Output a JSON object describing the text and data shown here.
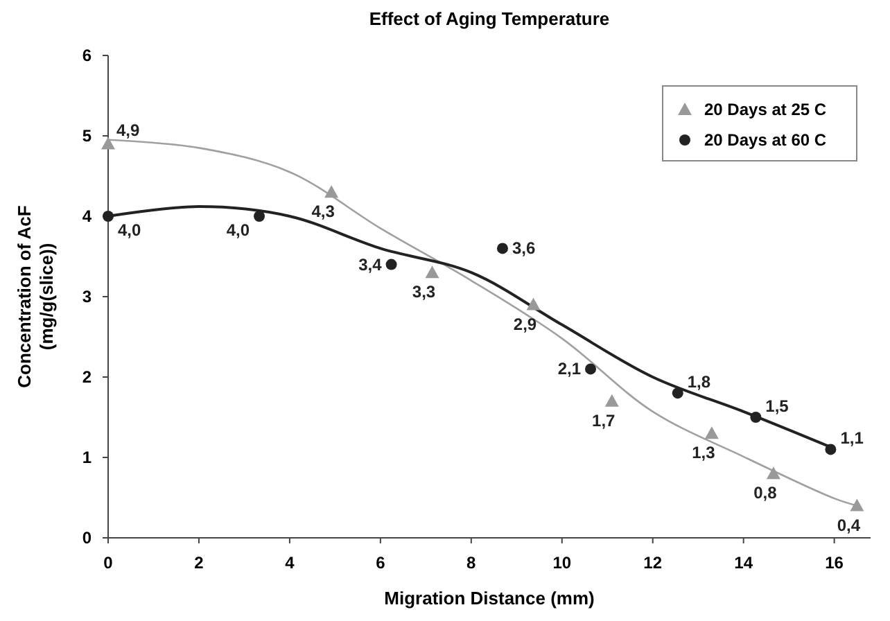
{
  "chart_data": {
    "type": "scatter",
    "title": "Effect of Aging Temperature",
    "xlabel": "Migration Distance (mm)",
    "ylabel": "Concentration of AcF (mg/g(slice))",
    "xlim": [
      0,
      16.8
    ],
    "xticks": [
      0,
      2,
      4,
      6,
      8,
      10,
      12,
      14,
      16
    ],
    "ylim": [
      0,
      6
    ],
    "yticks": [
      0,
      1,
      2,
      3,
      4,
      5,
      6
    ],
    "grid": false,
    "legend": "top right",
    "series": [
      {
        "name": "20 Days at 25 C",
        "marker": "triangle",
        "color": "#999999",
        "x": [
          0,
          4.92,
          7.14,
          9.37,
          11.1,
          13.3,
          14.66,
          16.5
        ],
        "values": [
          4.9,
          4.3,
          3.3,
          2.9,
          1.7,
          1.3,
          0.8,
          0.4
        ],
        "value_labels": [
          "4,9",
          "4,3",
          "3,3",
          "2,9",
          "1,7",
          "1,3",
          "0,8",
          "0,4"
        ]
      },
      {
        "name": "20 Days at 60 C",
        "marker": "circle",
        "color": "#222222",
        "x": [
          0,
          3.33,
          6.24,
          8.69,
          10.63,
          12.55,
          14.27,
          15.92
        ],
        "values": [
          4.0,
          4.0,
          3.4,
          3.6,
          2.1,
          1.8,
          1.5,
          1.1
        ],
        "value_labels": [
          "4,0",
          "4,0",
          "3,4",
          "3,6",
          "2,1",
          "1,8",
          "1,5",
          "1,1"
        ]
      },
      {
        "type": "line",
        "color": "#a0a0a0",
        "x": [
          0,
          2,
          4,
          6,
          8,
          10,
          12,
          14,
          16,
          16.5
        ],
        "values": [
          4.95,
          4.85,
          4.55,
          3.85,
          3.2,
          2.48,
          1.57,
          1.01,
          0.49,
          0.4
        ]
      },
      {
        "type": "line",
        "color": "#222222",
        "x": [
          0,
          2,
          4,
          6,
          8,
          10,
          12,
          14,
          16
        ],
        "values": [
          4.0,
          4.12,
          4.0,
          3.6,
          3.3,
          2.65,
          2.0,
          1.57,
          1.11
        ]
      }
    ]
  }
}
